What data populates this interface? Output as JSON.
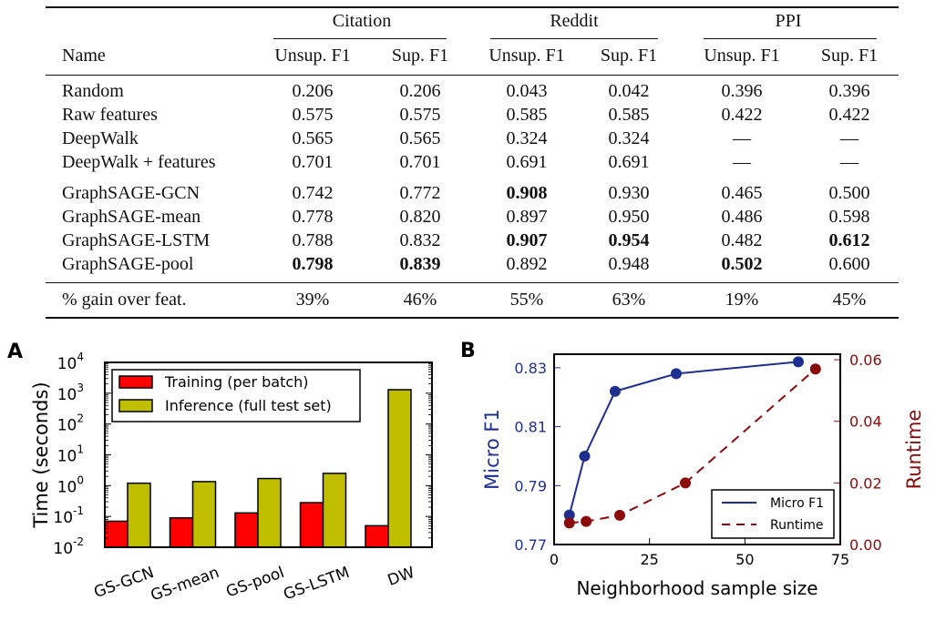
{
  "table": {
    "groups": [
      "Citation",
      "Reddit",
      "PPI"
    ],
    "columns": [
      "Name",
      "Unsup. F1",
      "Sup. F1",
      "Unsup. F1",
      "Sup. F1",
      "Unsup. F1",
      "Sup. F1"
    ],
    "rows": [
      {
        "name": "Random",
        "values": [
          "0.206",
          "0.206",
          "0.043",
          "0.042",
          "0.396",
          "0.396"
        ],
        "bold": []
      },
      {
        "name": "Raw features",
        "values": [
          "0.575",
          "0.575",
          "0.585",
          "0.585",
          "0.422",
          "0.422"
        ],
        "bold": []
      },
      {
        "name": "DeepWalk",
        "values": [
          "0.565",
          "0.565",
          "0.324",
          "0.324",
          "—",
          "—"
        ],
        "bold": []
      },
      {
        "name": "DeepWalk + features",
        "values": [
          "0.701",
          "0.701",
          "0.691",
          "0.691",
          "—",
          "—"
        ],
        "bold": []
      },
      {
        "name": "GraphSAGE-GCN",
        "values": [
          "0.742",
          "0.772",
          "0.908",
          "0.930",
          "0.465",
          "0.500"
        ],
        "bold": [
          2
        ]
      },
      {
        "name": "GraphSAGE-mean",
        "values": [
          "0.778",
          "0.820",
          "0.897",
          "0.950",
          "0.486",
          "0.598"
        ],
        "bold": []
      },
      {
        "name": "GraphSAGE-LSTM",
        "values": [
          "0.788",
          "0.832",
          "0.907",
          "0.954",
          "0.482",
          "0.612"
        ],
        "bold": [
          2,
          3,
          5
        ]
      },
      {
        "name": "GraphSAGE-pool",
        "values": [
          "0.798",
          "0.839",
          "0.892",
          "0.948",
          "0.502",
          "0.600"
        ],
        "bold": [
          0,
          1,
          4
        ]
      }
    ],
    "gain_row": {
      "name": "% gain over feat.",
      "values": [
        "39%",
        "46%",
        "55%",
        "63%",
        "19%",
        "45%"
      ]
    }
  },
  "chart_data": [
    {
      "panel": "A",
      "type": "bar",
      "categories": [
        "GS-GCN",
        "GS-mean",
        "GS-pool",
        "GS-LSTM",
        "DW"
      ],
      "series": [
        {
          "name": "Training (per batch)",
          "values": [
            0.07,
            0.09,
            0.13,
            0.28,
            0.05
          ],
          "color": "#ff0000"
        },
        {
          "name": "Inference (full test set)",
          "values": [
            1.2,
            1.35,
            1.7,
            2.5,
            1300
          ],
          "color": "#bfbf00"
        }
      ],
      "ylabel": "Time (seconds)",
      "yscale": "log",
      "ylim": [
        0.01,
        10000
      ],
      "yticks": [
        "10^-2",
        "10^-1",
        "10^0",
        "10^1",
        "10^2",
        "10^3",
        "10^4"
      ],
      "legend": "top-left",
      "grid": false
    },
    {
      "panel": "B",
      "type": "line",
      "xlabel": "Neighborhood sample size",
      "xlim": [
        0,
        75
      ],
      "xticks": [
        "0",
        "25",
        "50",
        "75"
      ],
      "series": [
        {
          "name": "Micro F1",
          "axis": "left",
          "x": [
            4,
            8,
            16,
            32,
            64
          ],
          "y": [
            0.78,
            0.8,
            0.822,
            0.828,
            0.832
          ],
          "color": "#1f2f8f",
          "style": "solid"
        },
        {
          "name": "Runtime",
          "axis": "right",
          "x": [
            4,
            8.4,
            17.2,
            34.4,
            68.5
          ],
          "y": [
            0.007,
            0.0075,
            0.0095,
            0.02,
            0.057
          ],
          "color": "#8b0a0a",
          "style": "dashed"
        }
      ],
      "ylabel_left": "Micro F1",
      "ylim_left": [
        0.77,
        0.8346
      ],
      "yticks_left": [
        "0.77",
        "0.79",
        "0.81",
        "0.83"
      ],
      "ylabel_right": "Runtime",
      "ylim_right": [
        0.0,
        0.0618
      ],
      "yticks_right": [
        "0.00",
        "0.02",
        "0.04",
        "0.06"
      ],
      "legend": "bottom-right",
      "grid": false
    }
  ]
}
